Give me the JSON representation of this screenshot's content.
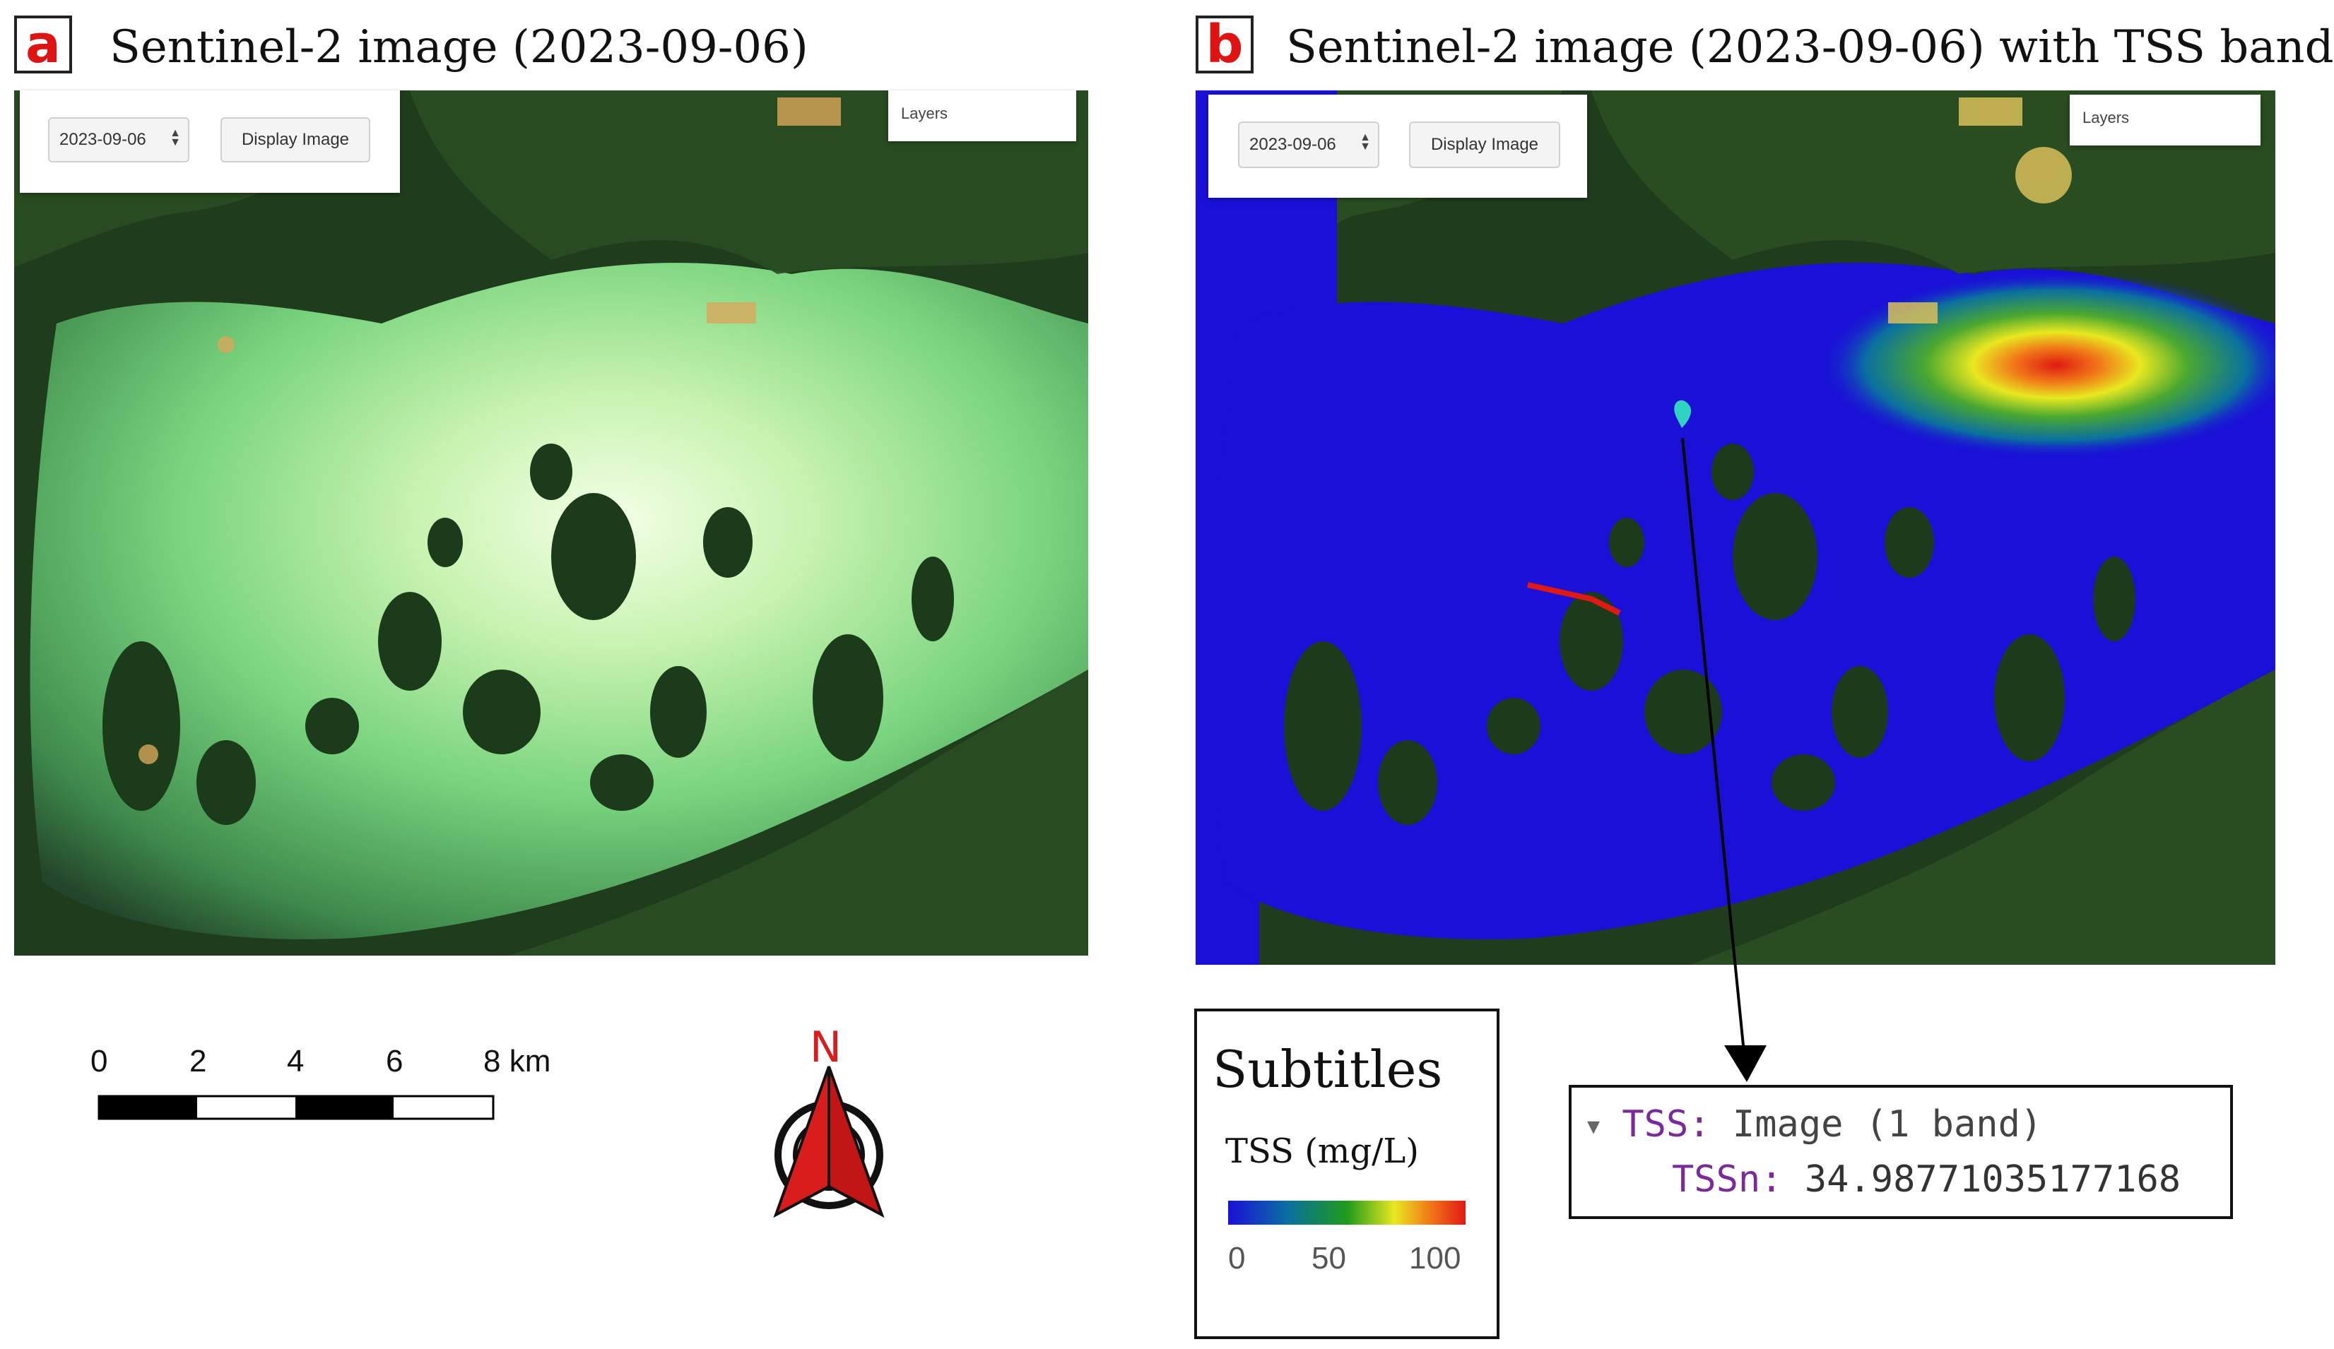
{
  "panels": [
    {
      "letter": "a",
      "title": "Sentinel-2 image (2023-09-06)"
    },
    {
      "letter": "b",
      "title": "Sentinel-2 image (2023-09-06) with TSS band"
    }
  ],
  "gee": {
    "date_value": "2023-09-06",
    "display_button": "Display Image",
    "layers_label": "Layers"
  },
  "scale_bar": {
    "ticks": [
      "0",
      "2",
      "4",
      "6",
      "8 km"
    ],
    "unit": "km",
    "segments": 4
  },
  "north_arrow": {
    "label": "N",
    "color": "#d91c1c"
  },
  "legend": {
    "title": "Subtitles",
    "variable": "TSS (mg/L)",
    "ticks": [
      "0",
      "50",
      "100"
    ],
    "range": [
      0,
      100
    ],
    "colors": [
      "#1a10d8",
      "#0a6fa0",
      "#1f9a1a",
      "#e8e820",
      "#f07818",
      "#e01a12"
    ]
  },
  "inspector": {
    "header_key": "TSS:",
    "header_value": "Image (1 band)",
    "band_key": "TSSn:",
    "band_value": "34.98771035177168"
  }
}
